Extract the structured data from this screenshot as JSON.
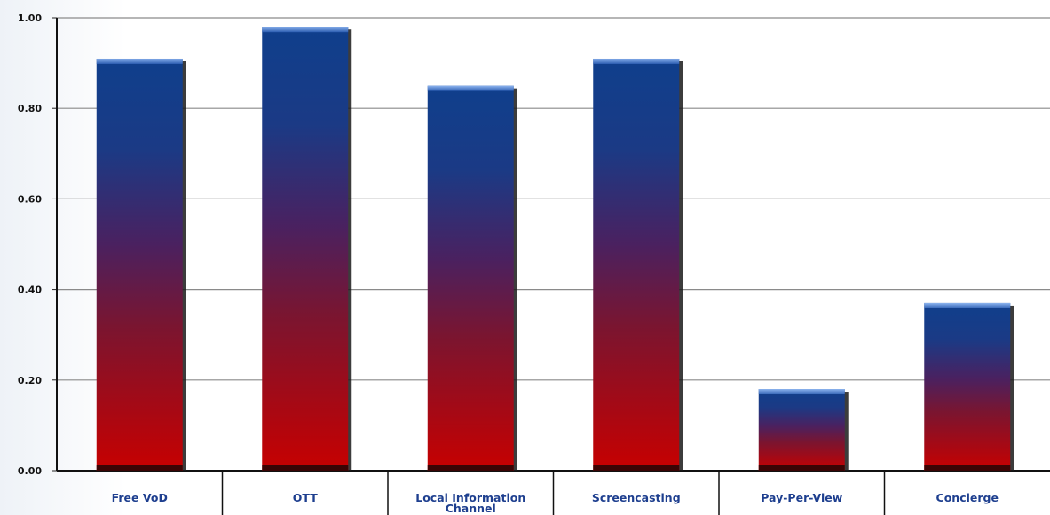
{
  "chart_data": {
    "type": "bar",
    "categories": [
      "Free VoD",
      "OTT",
      "Local Information Channel",
      "Screencasting",
      "Pay-Per-View",
      "Concierge"
    ],
    "values": [
      0.91,
      0.98,
      0.85,
      0.91,
      0.18,
      0.37
    ],
    "ylim": [
      0,
      1
    ],
    "yticks": [
      "0.00",
      "0.20",
      "0.40",
      "0.60",
      "0.80",
      "1.00"
    ],
    "grid": true,
    "legend": "none",
    "colors": {
      "bar_top": "#0f3f8c",
      "bar_mid": "#5a1a45",
      "bar_bottom": "#c70000",
      "grid": "#8a8a8a"
    }
  }
}
